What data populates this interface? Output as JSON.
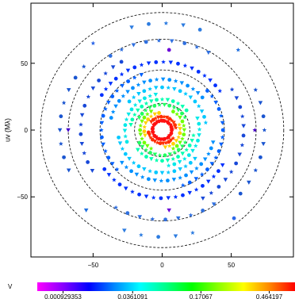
{
  "chart_data": {
    "type": "scatter",
    "title": "",
    "xlabel": "",
    "ylabel": "uv (Mλ)",
    "xlim": [
      -95,
      95
    ],
    "ylim": [
      -95,
      95
    ],
    "x_ticks": [
      -50,
      0,
      50
    ],
    "y_ticks": [
      -50,
      0,
      50
    ],
    "grid": false,
    "reference_circles": [
      20,
      45,
      68,
      88
    ],
    "colorbar": {
      "label": "V",
      "tick_labels": [
        "0.000929353",
        "0.0361091",
        "0.17067",
        "0.464197"
      ],
      "colors": [
        "#ff00ff",
        "#8800ff",
        "#0000ff",
        "#0088ff",
        "#00ffff",
        "#00ff88",
        "#00ff00",
        "#88ff00",
        "#ffff00",
        "#ff8800",
        "#ff0000"
      ]
    },
    "tracks": [
      {
        "color": "#ff1010",
        "r": 7,
        "a0": 0,
        "a1": 180,
        "step": 10
      },
      {
        "color": "#ff1010",
        "r": 7,
        "a0": 180,
        "a1": 360,
        "step": 10
      },
      {
        "color": "#ff3000",
        "r": 10,
        "a0": 10,
        "a1": 150,
        "step": 12
      },
      {
        "color": "#ff3000",
        "r": 10,
        "a0": 190,
        "a1": 330,
        "step": 12
      },
      {
        "color": "#ffd000",
        "r": 13,
        "a0": 100,
        "a1": 200,
        "step": 14
      },
      {
        "color": "#ffd000",
        "r": 13,
        "a0": 280,
        "a1": 380,
        "step": 14
      },
      {
        "color": "#70ff00",
        "r": 16,
        "a0": 120,
        "a1": 250,
        "step": 12
      },
      {
        "color": "#70ff00",
        "r": 16,
        "a0": 300,
        "a1": 430,
        "step": 12
      },
      {
        "color": "#20ff60",
        "r": 19,
        "a0": 30,
        "a1": 160,
        "step": 11
      },
      {
        "color": "#20ff60",
        "r": 19,
        "a0": 210,
        "a1": 340,
        "step": 11
      },
      {
        "color": "#00ffb0",
        "r": 23,
        "a0": 40,
        "a1": 175,
        "step": 10
      },
      {
        "color": "#00ffb0",
        "r": 23,
        "a0": 220,
        "a1": 355,
        "step": 10
      },
      {
        "color": "#00e8e8",
        "r": 27,
        "a0": 100,
        "a1": 200,
        "step": 9
      },
      {
        "color": "#00e8e8",
        "r": 27,
        "a0": 280,
        "a1": 380,
        "step": 9
      },
      {
        "color": "#00c8ff",
        "r": 32,
        "a0": 10,
        "a1": 140,
        "step": 8
      },
      {
        "color": "#00c8ff",
        "r": 32,
        "a0": 190,
        "a1": 320,
        "step": 8
      },
      {
        "color": "#0090ff",
        "r": 38,
        "a0": 40,
        "a1": 170,
        "step": 7
      },
      {
        "color": "#0090ff",
        "r": 38,
        "a0": 220,
        "a1": 350,
        "step": 7
      },
      {
        "color": "#0060ff",
        "r": 44,
        "a0": 110,
        "a1": 225,
        "step": 7
      },
      {
        "color": "#0060ff",
        "r": 44,
        "a0": 290,
        "a1": 405,
        "step": 7
      },
      {
        "color": "#0030ff",
        "r": 51,
        "a0": 35,
        "a1": 150,
        "step": 6
      },
      {
        "color": "#0030ff",
        "r": 51,
        "a0": 215,
        "a1": 330,
        "step": 6
      },
      {
        "color": "#1848d8",
        "r": 59,
        "a0": 120,
        "a1": 215,
        "step": 7
      },
      {
        "color": "#1848d8",
        "r": 59,
        "a0": 300,
        "a1": 395,
        "step": 7
      },
      {
        "color": "#3070e0",
        "r": 67,
        "a0": 60,
        "a1": 125,
        "step": 8
      },
      {
        "color": "#3070e0",
        "r": 67,
        "a0": 240,
        "a1": 305,
        "step": 8
      },
      {
        "color": "#1a55d0",
        "r": 74,
        "a0": 140,
        "a1": 205,
        "step": 8
      },
      {
        "color": "#1a55d0",
        "r": 74,
        "a0": 320,
        "a1": 385,
        "step": 8
      },
      {
        "color": "#2d7ce0",
        "r": 80,
        "a0": 70,
        "a1": 110,
        "step": 9
      },
      {
        "color": "#2d7ce0",
        "r": 80,
        "a0": 250,
        "a1": 290,
        "step": 9
      }
    ],
    "isolated_points": [
      {
        "x": -68,
        "y": 0,
        "color": "#4400cc"
      },
      {
        "x": 67,
        "y": 0,
        "color": "#4400cc"
      },
      {
        "x": 5,
        "y": 60,
        "color": "#6a00d8"
      },
      {
        "x": 5,
        "y": -60,
        "color": "#6a00d8"
      },
      {
        "x": -50,
        "y": 65,
        "color": "#2c66e8"
      },
      {
        "x": 52,
        "y": -66,
        "color": "#2c66e8"
      },
      {
        "x": -55,
        "y": -60,
        "color": "#1f6fe0"
      },
      {
        "x": 55,
        "y": 60,
        "color": "#1f6fe0"
      }
    ]
  }
}
